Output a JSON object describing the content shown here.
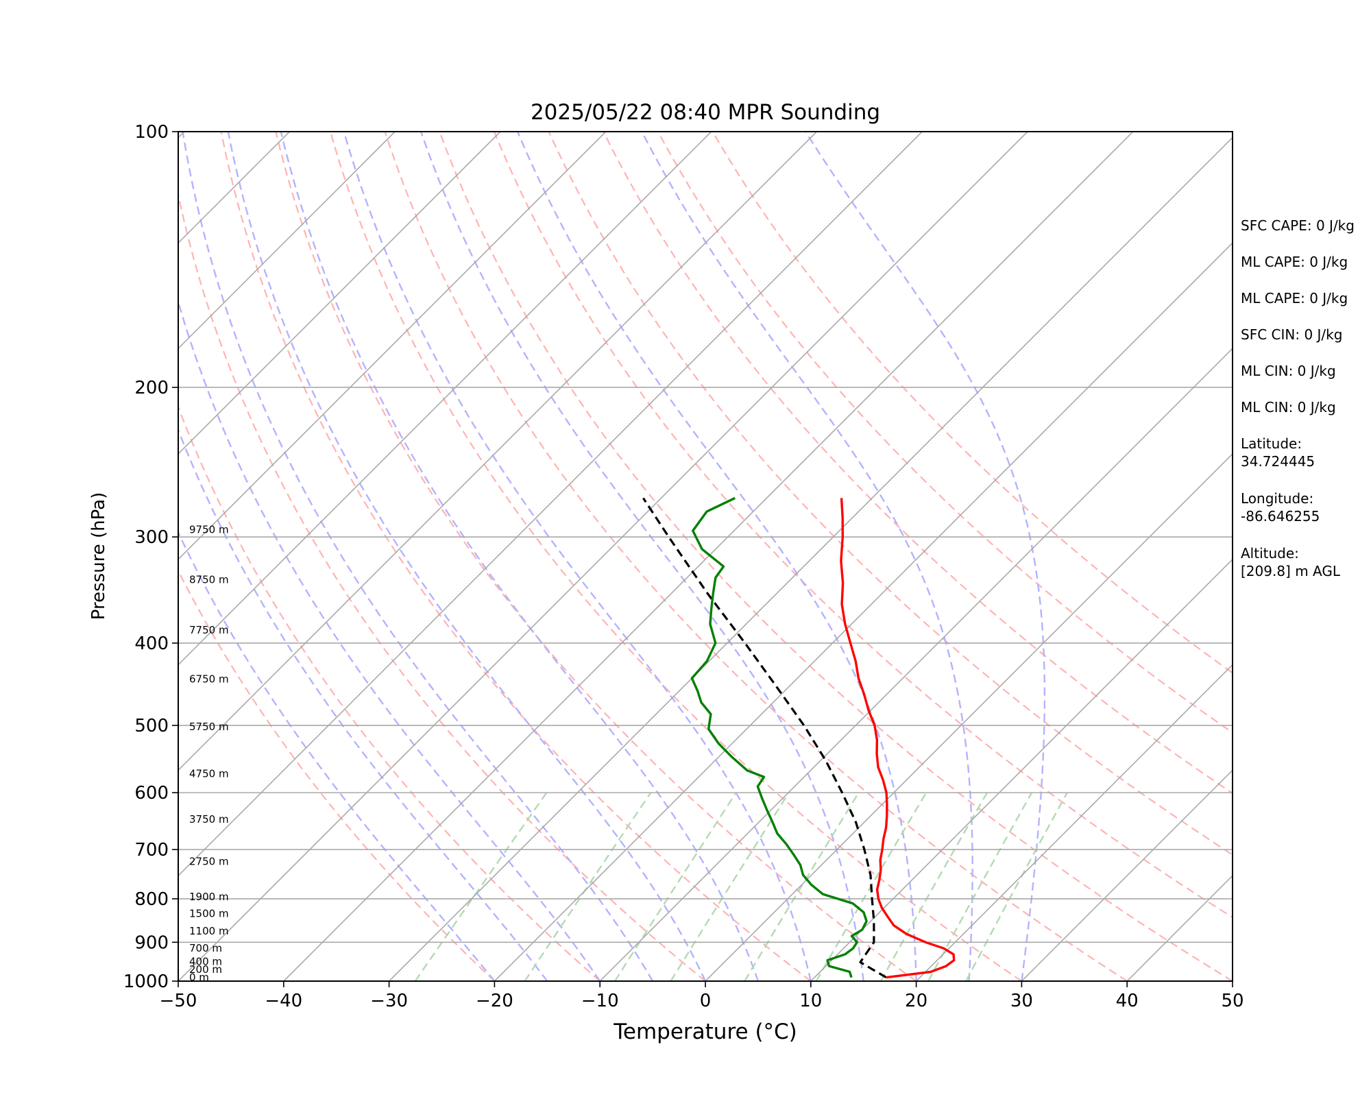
{
  "chart_data": {
    "type": "skew-t",
    "title": "2025/05/22 08:40 MPR Sounding",
    "xlabel": "Temperature (°C)",
    "ylabel": "Pressure (hPa)",
    "xlim": [
      -50,
      50
    ],
    "ylim": [
      1000,
      100
    ],
    "y_scale": "log",
    "x_ticks": [
      -50,
      -40,
      -30,
      -20,
      -10,
      0,
      10,
      20,
      30,
      40,
      50
    ],
    "x_tick_labels": [
      "−50",
      "−40",
      "−30",
      "−20",
      "−10",
      "0",
      "10",
      "20",
      "30",
      "40",
      "50"
    ],
    "y_ticks": [
      100,
      200,
      300,
      400,
      500,
      600,
      700,
      800,
      900,
      1000
    ],
    "y_tick_labels": [
      "100",
      "200",
      "300",
      "400",
      "500",
      "600",
      "700",
      "800",
      "900",
      "1000"
    ],
    "grid": true,
    "colors": {
      "temperature": "#ff0000",
      "dewpoint": "#008000",
      "parcel": "#000000",
      "isotherm": "#a9a9a9",
      "dry_adiabat": "#ffb3b3",
      "moist_adiabat": "#b3b3ff",
      "mixing_ratio": "#b3dab3"
    },
    "temperature": {
      "p": [
        990,
        975,
        960,
        945,
        930,
        915,
        900,
        880,
        860,
        840,
        820,
        800,
        780,
        760,
        740,
        720,
        700,
        680,
        660,
        640,
        620,
        600,
        580,
        560,
        540,
        520,
        500,
        480,
        460,
        440,
        420,
        400,
        380,
        360,
        340,
        320,
        300,
        285,
        270
      ],
      "t": [
        16.8,
        20.5,
        21.4,
        21.6,
        21.0,
        19.5,
        17.2,
        14.6,
        12.6,
        11.2,
        9.8,
        8.6,
        7.6,
        6.9,
        6.1,
        5.1,
        4.3,
        3.4,
        2.6,
        1.6,
        0.5,
        -0.7,
        -2.2,
        -3.9,
        -5.3,
        -6.6,
        -8.2,
        -10.2,
        -12.1,
        -14.2,
        -16.1,
        -18.3,
        -20.6,
        -22.8,
        -24.7,
        -27.0,
        -29.1,
        -30.9,
        -32.9
      ]
    },
    "dewpoint": {
      "p": [
        990,
        975,
        960,
        945,
        930,
        915,
        900,
        885,
        870,
        850,
        830,
        810,
        790,
        770,
        750,
        730,
        710,
        690,
        670,
        650,
        630,
        610,
        590,
        575,
        565,
        545,
        525,
        505,
        500,
        485,
        470,
        455,
        440,
        420,
        400,
        380,
        365,
        350,
        335,
        325,
        310,
        295,
        280,
        270
      ],
      "t": [
        13.5,
        12.8,
        10.3,
        9.6,
        10.7,
        10.9,
        10.7,
        9.6,
        10.0,
        9.6,
        8.5,
        6.6,
        2.9,
        0.9,
        -0.8,
        -2.0,
        -3.6,
        -5.3,
        -7.2,
        -8.7,
        -10.3,
        -11.9,
        -13.5,
        -13.8,
        -16.0,
        -18.7,
        -21.3,
        -23.6,
        -23.9,
        -24.8,
        -26.8,
        -28.3,
        -30.0,
        -30.2,
        -31.1,
        -33.4,
        -34.7,
        -36.0,
        -37.3,
        -37.6,
        -41.3,
        -43.9,
        -44.4,
        -43.0
      ]
    },
    "parcel": {
      "p": [
        990,
        950,
        900,
        850,
        800,
        750,
        700,
        650,
        600,
        550,
        500,
        450,
        400,
        350,
        300,
        270
      ],
      "t": [
        16.8,
        12.9,
        12.3,
        10.3,
        8.0,
        5.6,
        2.6,
        -0.8,
        -4.9,
        -9.5,
        -14.9,
        -21.2,
        -28.3,
        -36.5,
        -45.6,
        -51.7
      ]
    },
    "height_labels": [
      {
        "label": "0 m",
        "p": 990
      },
      {
        "label": "200 m",
        "p": 969
      },
      {
        "label": "400 m",
        "p": 948
      },
      {
        "label": "700 m",
        "p": 915
      },
      {
        "label": "1100 m",
        "p": 873
      },
      {
        "label": "1500 m",
        "p": 833
      },
      {
        "label": "1900 m",
        "p": 796
      },
      {
        "label": "2750 m",
        "p": 723
      },
      {
        "label": "3750 m",
        "p": 645
      },
      {
        "label": "4750 m",
        "p": 570
      },
      {
        "label": "5750 m",
        "p": 502
      },
      {
        "label": "6750 m",
        "p": 441
      },
      {
        "label": "7750 m",
        "p": 386
      },
      {
        "label": "8750 m",
        "p": 337
      },
      {
        "label": "9750 m",
        "p": 294
      }
    ],
    "background_lines": {
      "isotherms_t": [
        -180,
        -170,
        -160,
        -150,
        -140,
        -130,
        -120,
        -110,
        -100,
        -90,
        -80,
        -70,
        -60,
        -50,
        -40,
        -30,
        -20,
        -10,
        0,
        10,
        20,
        30,
        40,
        50
      ],
      "dry_adiabats_theta_c": [
        -20,
        -10,
        0,
        10,
        20,
        30,
        40,
        50,
        60,
        70,
        80,
        90,
        100
      ],
      "moist_adiabats_t0": [
        -20,
        -15,
        -10,
        -5,
        0,
        5,
        10,
        15,
        20,
        25,
        30
      ],
      "mixing_ratios_gkg": [
        0.4,
        1,
        2,
        3,
        5,
        8,
        12,
        16,
        20
      ]
    }
  },
  "stats": {
    "sfc_cape": "SFC CAPE: 0 J/kg",
    "ml_cape_1": "ML CAPE: 0 J/kg",
    "ml_cape_2": "ML CAPE: 0 J/kg",
    "sfc_cin": "SFC CIN: 0 J/kg",
    "ml_cin_1": "ML CIN: 0 J/kg",
    "ml_cin_2": "ML CIN: 0 J/kg"
  },
  "location": {
    "latitude_label": "Latitude:",
    "latitude_value": "34.724445",
    "longitude_label": "Longitude:",
    "longitude_value": "-86.646255",
    "altitude_label": "Altitude:",
    "altitude_value": "[209.8] m AGL"
  }
}
